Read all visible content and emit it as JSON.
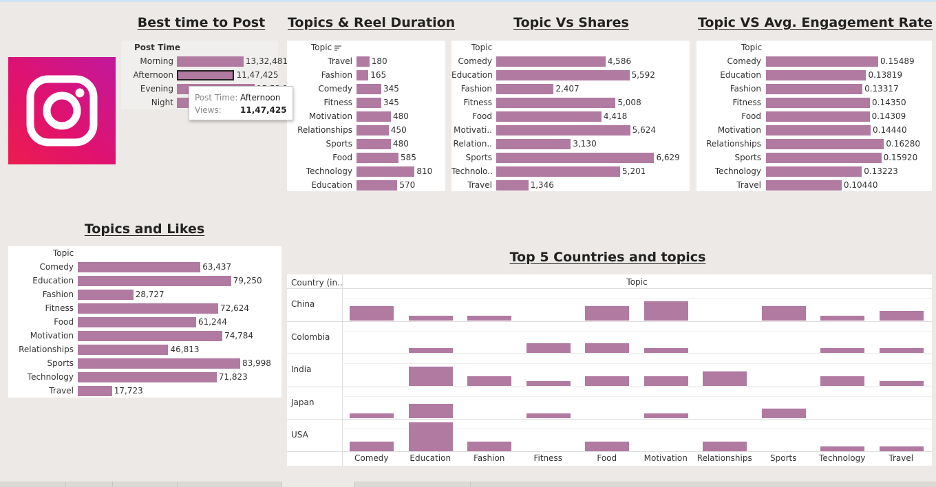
{
  "colors": {
    "bar": "#b07aa1",
    "background": "#ece9e6"
  },
  "icons": {
    "logo": "instagram-logo-icon",
    "sort": "sort-descending-icon"
  },
  "chart_data": [
    {
      "id": "best_time",
      "type": "bar",
      "title": "Best time to Post",
      "dimension_header": "Post Time",
      "categories": [
        "Morning",
        "Afternoon",
        "Evening",
        "Night"
      ],
      "values": [
        1332481,
        1147425,
        1552100,
        1050000
      ],
      "value_labels": [
        "13,32,481",
        "11,47,425",
        "15,52,100",
        ""
      ],
      "xlim": [
        0,
        1650000
      ],
      "highlighted_category": "Afternoon"
    },
    {
      "id": "reel_duration",
      "type": "bar",
      "title": "Topics & Reel Duration",
      "dimension_header": "Topic",
      "categories": [
        "Travel",
        "Fashion",
        "Comedy",
        "Fitness",
        "Motivation",
        "Relationships",
        "Sports",
        "Food",
        "Technology",
        "Education"
      ],
      "values": [
        180,
        165,
        345,
        345,
        480,
        450,
        480,
        585,
        810,
        570
      ],
      "value_labels": [
        "180",
        "165",
        "345",
        "345",
        "480",
        "450",
        "480",
        "585",
        "810",
        "570"
      ],
      "xlim": [
        0,
        960
      ]
    },
    {
      "id": "shares",
      "type": "bar",
      "title": "Topic Vs Shares",
      "dimension_header": "Topic",
      "categories": [
        "Comedy",
        "Education",
        "Fashion",
        "Fitness",
        "Food",
        "Motivati..",
        "Relation..",
        "Sports",
        "Technolo..",
        "Travel"
      ],
      "values": [
        4586,
        5592,
        2407,
        5008,
        4418,
        5624,
        3130,
        6629,
        5201,
        1346
      ],
      "value_labels": [
        "4,586",
        "5,592",
        "2,407",
        "5,008",
        "4,418",
        "5,624",
        "3,130",
        "6,629",
        "5,201",
        "1,346"
      ],
      "xlim": [
        0,
        7800
      ]
    },
    {
      "id": "engagement",
      "type": "bar",
      "title": "Topic VS Avg. Engagement Rate",
      "dimension_header": "Topic",
      "categories": [
        "Comedy",
        "Education",
        "Fashion",
        "Fitness",
        "Food",
        "Motivation",
        "Relationships",
        "Sports",
        "Technology",
        "Travel"
      ],
      "values": [
        0.15489,
        0.13819,
        0.13317,
        0.1435,
        0.14309,
        0.1444,
        0.1628,
        0.1592,
        0.13223,
        0.1044
      ],
      "value_labels": [
        "0.15489",
        "0.13819",
        "0.13317",
        "0.14350",
        "0.14309",
        "0.14440",
        "0.16280",
        "0.15920",
        "0.13223",
        "0.10440"
      ],
      "xlim": [
        0,
        0.19
      ]
    },
    {
      "id": "likes",
      "type": "bar",
      "title": "Topics and Likes",
      "dimension_header": "Topic",
      "categories": [
        "Comedy",
        "Education",
        "Fashion",
        "Fitness",
        "Food",
        "Motivation",
        "Relationships",
        "Sports",
        "Technology",
        "Travel"
      ],
      "values": [
        63437,
        79250,
        28727,
        72624,
        61244,
        74784,
        46813,
        83998,
        71823,
        17723
      ],
      "value_labels": [
        "63,437",
        "79,250",
        "28,727",
        "72,624",
        "61,244",
        "74,784",
        "46,813",
        "83,998",
        "71,823",
        "17,723"
      ],
      "xlim": [
        0,
        89000
      ]
    },
    {
      "id": "countries",
      "type": "bar",
      "title": "Top 5 Countries and topics",
      "row_header": "Country (in..",
      "column_header": "Topic",
      "rows": [
        "China",
        "Colombia",
        "India",
        "Japan",
        "USA"
      ],
      "columns": [
        "Comedy",
        "Education",
        "Fashion",
        "Fitness",
        "Food",
        "Motivation",
        "Relationships",
        "Sports",
        "Technology",
        "Travel"
      ],
      "values": [
        [
          3,
          1,
          1,
          0,
          3,
          4,
          0,
          3,
          1,
          2
        ],
        [
          0,
          1,
          0,
          2,
          2,
          1,
          0,
          0,
          1,
          1
        ],
        [
          0,
          4,
          2,
          1,
          2,
          2,
          3,
          0,
          2,
          1
        ],
        [
          1,
          3,
          0,
          1,
          0,
          1,
          0,
          2,
          0,
          0
        ],
        [
          2,
          6,
          2,
          0,
          2,
          0,
          2,
          0,
          1,
          1
        ]
      ],
      "ymax": 6
    }
  ],
  "tooltip": {
    "label1": "Post Time:",
    "value1": "Afternoon",
    "label2": "Views:",
    "value2": "11,47,425"
  }
}
